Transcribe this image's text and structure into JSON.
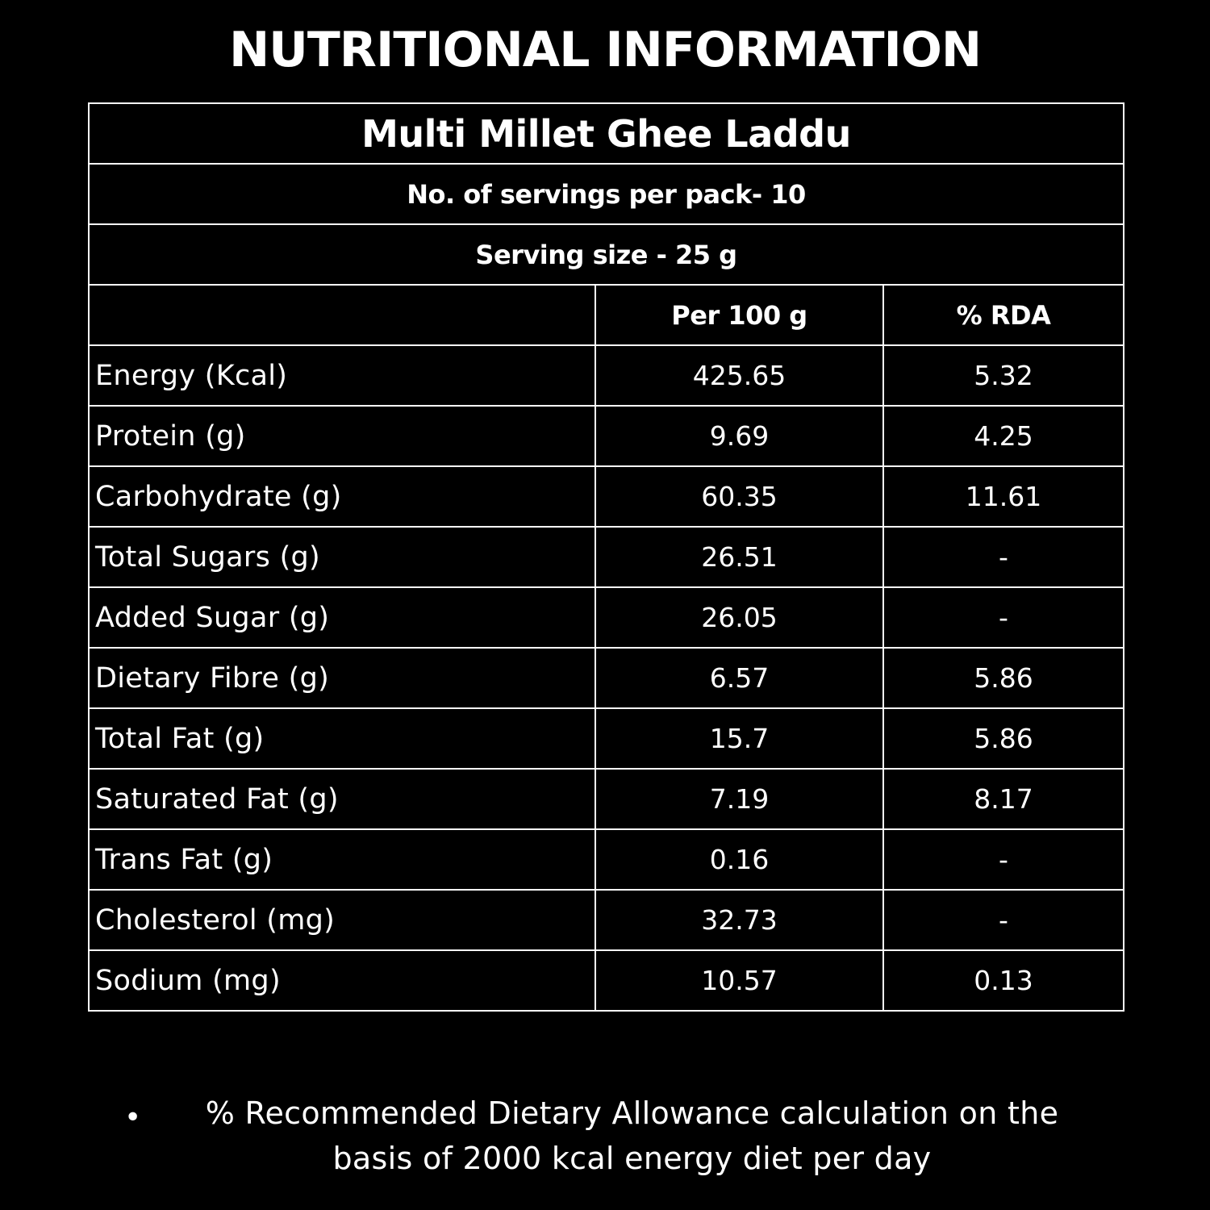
{
  "title": "NUTRITIONAL INFORMATION",
  "product_name": "Multi Millet Ghee Laddu",
  "servings_per_pack": "No. of servings per pack- 10",
  "serving_size": "Serving size - 25 g",
  "columns": {
    "nutrient": "",
    "per_100g": "Per 100 g",
    "rda": "% RDA"
  },
  "rows": [
    {
      "name": "Energy (Kcal)",
      "per_100g": "425.65",
      "rda": "5.32"
    },
    {
      "name": "Protein (g)",
      "per_100g": "9.69",
      "rda": "4.25"
    },
    {
      "name": "Carbohydrate (g)",
      "per_100g": "60.35",
      "rda": "11.61"
    },
    {
      "name": "Total Sugars (g)",
      "per_100g": "26.51",
      "rda": "-"
    },
    {
      "name": "Added Sugar (g)",
      "per_100g": "26.05",
      "rda": "-"
    },
    {
      "name": "Dietary Fibre (g)",
      "per_100g": "6.57",
      "rda": "5.86"
    },
    {
      "name": "Total Fat (g)",
      "per_100g": "15.7",
      "rda": "5.86"
    },
    {
      "name": "Saturated Fat (g)",
      "per_100g": "7.19",
      "rda": "8.17"
    },
    {
      "name": "Trans Fat (g)",
      "per_100g": "0.16",
      "rda": "-"
    },
    {
      "name": "Cholesterol (mg)",
      "per_100g": "32.73",
      "rda": "-"
    },
    {
      "name": "Sodium (mg)",
      "per_100g": "10.57",
      "rda": "0.13"
    }
  ],
  "footnote": {
    "bullet": "•",
    "line1": "% Recommended Dietary Allowance calculation on the",
    "line2": "basis of 2000 kcal energy diet per day"
  },
  "colors": {
    "background": "#000000",
    "text": "#ffffff",
    "border": "#ffffff"
  }
}
